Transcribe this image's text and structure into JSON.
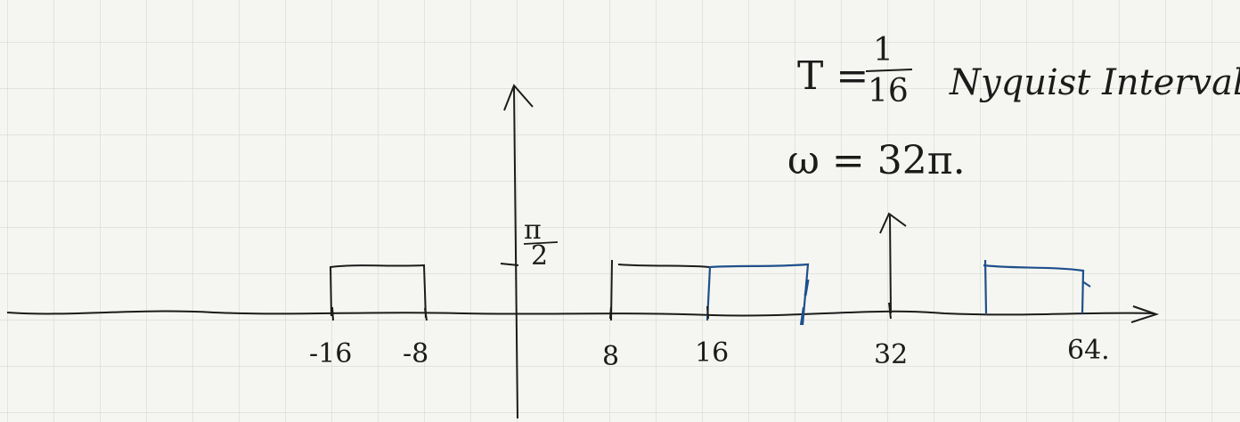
{
  "colors": {
    "background": "#f5f6f1",
    "grid": "#d6d8d2",
    "ink": "#1b1b1b",
    "blue": "#1f4f8c"
  },
  "axis_ticks": [
    "-16",
    "-8",
    "8",
    "16",
    "32",
    "64."
  ],
  "amplitude": {
    "numerator": "π",
    "denominator": "2"
  },
  "sampling": {
    "T_lhs": "T =",
    "T_num": "1",
    "T_den": "16",
    "note": "Nyquist Interval.",
    "w_eq": "ω = 32π."
  }
}
